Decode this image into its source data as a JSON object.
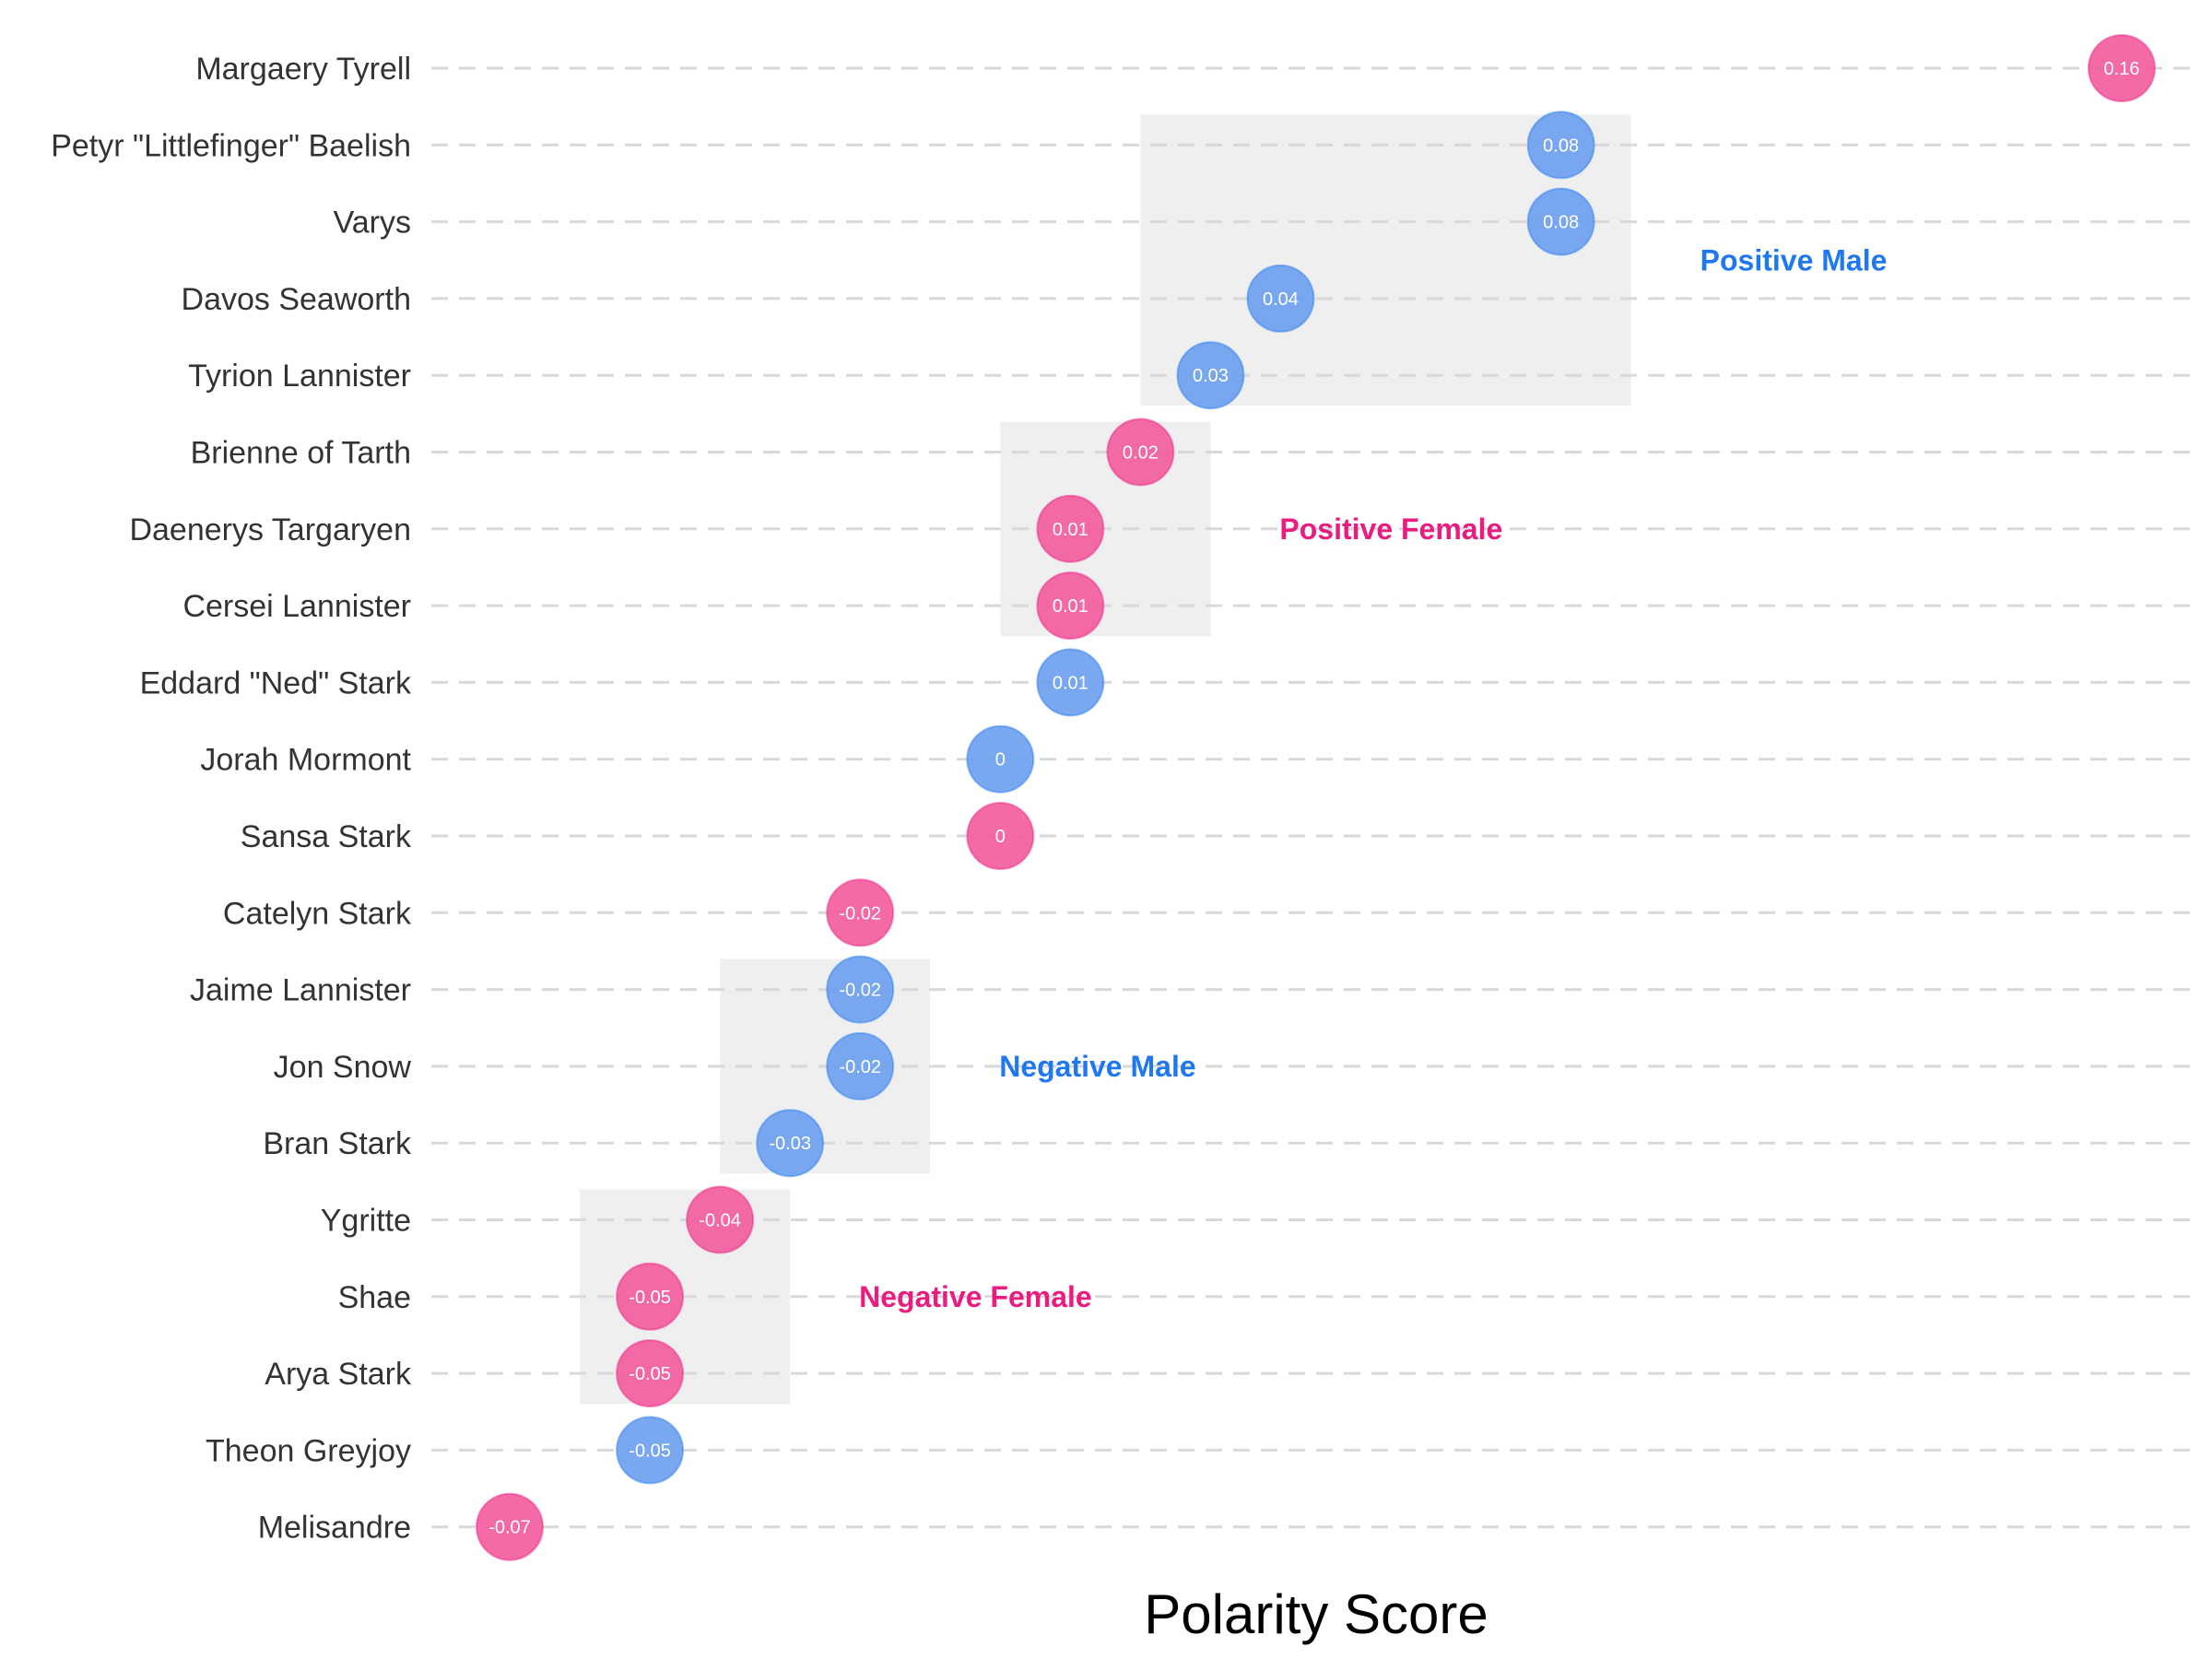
{
  "chart_data": {
    "type": "scatter",
    "xlabel": "Polarity Score",
    "xlim": [
      -0.07,
      0.16
    ],
    "grid": "dashed horizontal guide per row",
    "colors": {
      "Male": "#6a9ff0",
      "Female": "#f25a9c"
    },
    "label_colors": {
      "Male": "#1f78f0",
      "Female": "#ea1c80"
    },
    "points": [
      {
        "name": "Margaery Tyrell",
        "value": 0.16,
        "label": "0.16",
        "gender": "Female"
      },
      {
        "name": "Petyr \"Littlefinger\" Baelish",
        "value": 0.08,
        "label": "0.08",
        "gender": "Male"
      },
      {
        "name": "Varys",
        "value": 0.08,
        "label": "0.08",
        "gender": "Male"
      },
      {
        "name": "Davos Seaworth",
        "value": 0.04,
        "label": "0.04",
        "gender": "Male"
      },
      {
        "name": "Tyrion Lannister",
        "value": 0.03,
        "label": "0.03",
        "gender": "Male"
      },
      {
        "name": "Brienne of Tarth",
        "value": 0.02,
        "label": "0.02",
        "gender": "Female"
      },
      {
        "name": "Daenerys Targaryen",
        "value": 0.01,
        "label": "0.01",
        "gender": "Female"
      },
      {
        "name": "Cersei Lannister",
        "value": 0.01,
        "label": "0.01",
        "gender": "Female"
      },
      {
        "name": "Eddard \"Ned\" Stark",
        "value": 0.01,
        "label": "0.01",
        "gender": "Male"
      },
      {
        "name": "Jorah Mormont",
        "value": 0.0,
        "label": "0",
        "gender": "Male"
      },
      {
        "name": "Sansa Stark",
        "value": 0.0,
        "label": "0",
        "gender": "Female"
      },
      {
        "name": "Catelyn Stark",
        "value": -0.02,
        "label": "-0.02",
        "gender": "Female"
      },
      {
        "name": "Jaime Lannister",
        "value": -0.02,
        "label": "-0.02",
        "gender": "Male"
      },
      {
        "name": "Jon Snow",
        "value": -0.02,
        "label": "-0.02",
        "gender": "Male"
      },
      {
        "name": "Bran Stark",
        "value": -0.03,
        "label": "-0.03",
        "gender": "Male"
      },
      {
        "name": "Ygritte",
        "value": -0.04,
        "label": "-0.04",
        "gender": "Female"
      },
      {
        "name": "Shae",
        "value": -0.05,
        "label": "-0.05",
        "gender": "Female"
      },
      {
        "name": "Arya Stark",
        "value": -0.05,
        "label": "-0.05",
        "gender": "Female"
      },
      {
        "name": "Theon Greyjoy",
        "value": -0.05,
        "label": "-0.05",
        "gender": "Male"
      },
      {
        "name": "Melisandre",
        "value": -0.07,
        "label": "-0.07",
        "gender": "Female"
      }
    ],
    "annotations": [
      {
        "text": "Positive Male",
        "gender": "Male",
        "rows": [
          "Petyr \"Littlefinger\" Baelish",
          "Tyrion Lannister"
        ],
        "x_range": [
          0.03,
          0.08
        ]
      },
      {
        "text": "Positive Female",
        "gender": "Female",
        "rows": [
          "Brienne of Tarth",
          "Cersei Lannister"
        ],
        "x_range": [
          0.01,
          0.02
        ]
      },
      {
        "text": "Negative Male",
        "gender": "Male",
        "rows": [
          "Jaime Lannister",
          "Bran Stark"
        ],
        "x_range": [
          -0.03,
          -0.02
        ]
      },
      {
        "text": "Negative Female",
        "gender": "Female",
        "rows": [
          "Ygritte",
          "Arya Stark"
        ],
        "x_range": [
          -0.05,
          -0.04
        ]
      }
    ]
  }
}
